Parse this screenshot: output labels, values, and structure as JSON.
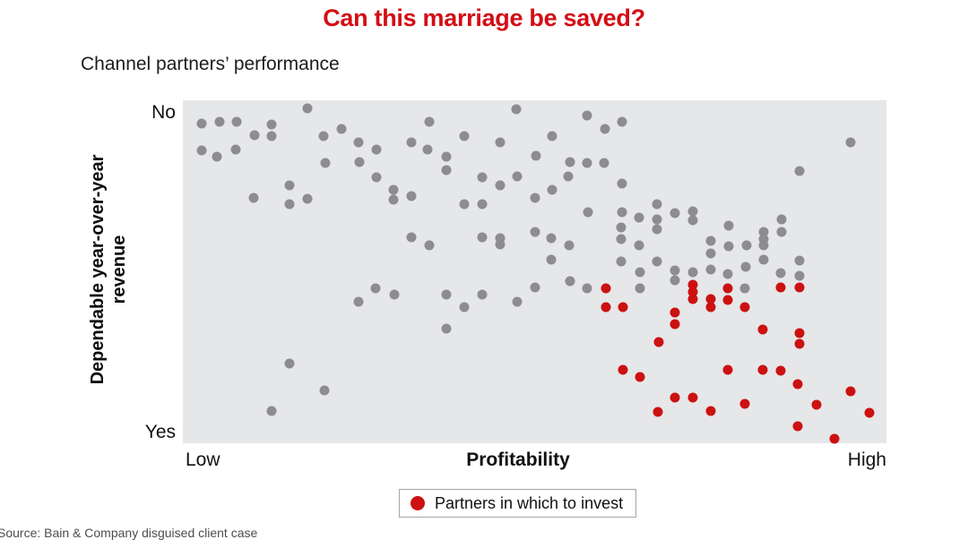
{
  "title": "Can this marriage be saved?",
  "subtitle": "Channel partners’ performance",
  "source": "Source: Bain & Company disguised client case",
  "colors": {
    "title_red": "#d40d14",
    "invest_red": "#cc1111",
    "partner_gray": "#8d8d8f",
    "plot_background": "#e6e7e9",
    "legend_border": "#a6a6a6"
  },
  "chart_data": {
    "type": "scatter",
    "title": "Can this marriage be saved?",
    "subtitle": "Channel partners’ performance",
    "xlabel": "Profitability",
    "ylabel": "Dependable year-over-year revenue",
    "x_axis": {
      "label": "Profitability",
      "min_label": "Low",
      "max_label": "High",
      "scale": "qualitative 0=Low to 100=High",
      "ticks": false
    },
    "y_axis": {
      "label_line1": "Dependable year-over-year",
      "label_line2": "revenue",
      "top_label": "No",
      "bottom_label": "Yes",
      "scale": "qualitative 0=No (top) to 100=Yes (bottom)",
      "ticks": false
    },
    "grid": false,
    "legend_position": "below-chart-center",
    "legend": [
      {
        "label": "Partners in which to invest",
        "color": "#cc1111"
      }
    ],
    "series": [
      {
        "name": "partners_other",
        "color": "#8d8d8f",
        "dot_name": "gray-partner-point",
        "points": [
          [
            2.7,
            6.8
          ],
          [
            5.2,
            6.3
          ],
          [
            7.6,
            6.3
          ],
          [
            12.6,
            7.0
          ],
          [
            10.2,
            10.2
          ],
          [
            12.6,
            10.4
          ],
          [
            17.7,
            2.3
          ],
          [
            20.0,
            10.4
          ],
          [
            22.5,
            8.4
          ],
          [
            2.7,
            14.6
          ],
          [
            4.8,
            16.4
          ],
          [
            7.5,
            14.4
          ],
          [
            25.0,
            12.3
          ],
          [
            27.5,
            14.4
          ],
          [
            32.5,
            12.3
          ],
          [
            20.3,
            18.3
          ],
          [
            25.1,
            18.0
          ],
          [
            27.5,
            22.5
          ],
          [
            15.2,
            24.8
          ],
          [
            10.1,
            28.5
          ],
          [
            15.2,
            30.3
          ],
          [
            17.7,
            28.7
          ],
          [
            29.9,
            26.1
          ],
          [
            29.9,
            29.0
          ],
          [
            32.5,
            27.9
          ],
          [
            32.5,
            39.9
          ],
          [
            47.4,
            2.6
          ],
          [
            57.5,
            4.4
          ],
          [
            62.4,
            6.3
          ],
          [
            60.0,
            8.4
          ],
          [
            35.0,
            6.3
          ],
          [
            40.0,
            10.4
          ],
          [
            45.1,
            12.3
          ],
          [
            52.5,
            10.4
          ],
          [
            34.8,
            14.4
          ],
          [
            37.5,
            16.4
          ],
          [
            37.5,
            20.4
          ],
          [
            50.2,
            16.2
          ],
          [
            55.0,
            18.0
          ],
          [
            57.5,
            18.3
          ],
          [
            59.9,
            18.3
          ],
          [
            42.5,
            22.5
          ],
          [
            45.1,
            24.8
          ],
          [
            47.5,
            22.2
          ],
          [
            54.8,
            22.2
          ],
          [
            62.4,
            24.3
          ],
          [
            52.5,
            26.1
          ],
          [
            50.1,
            28.5
          ],
          [
            40.0,
            30.3
          ],
          [
            42.5,
            30.3
          ],
          [
            57.6,
            32.6
          ],
          [
            62.4,
            32.6
          ],
          [
            64.8,
            34.2
          ],
          [
            67.4,
            30.3
          ],
          [
            67.4,
            34.7
          ],
          [
            62.3,
            37.1
          ],
          [
            67.4,
            37.6
          ],
          [
            50.1,
            38.4
          ],
          [
            52.4,
            40.2
          ],
          [
            42.5,
            39.9
          ],
          [
            45.1,
            40.2
          ],
          [
            45.1,
            42.0
          ],
          [
            35.0,
            42.3
          ],
          [
            54.9,
            42.3
          ],
          [
            62.3,
            40.5
          ],
          [
            64.8,
            42.3
          ],
          [
            52.4,
            46.5
          ],
          [
            62.3,
            47.0
          ],
          [
            67.4,
            47.0
          ],
          [
            94.9,
            12.3
          ],
          [
            87.6,
            20.6
          ],
          [
            69.9,
            32.9
          ],
          [
            72.5,
            32.4
          ],
          [
            72.5,
            35.0
          ],
          [
            77.6,
            36.6
          ],
          [
            75.0,
            41.0
          ],
          [
            77.6,
            42.6
          ],
          [
            80.1,
            42.3
          ],
          [
            75.0,
            44.6
          ],
          [
            82.5,
            38.4
          ],
          [
            82.5,
            40.5
          ],
          [
            82.5,
            42.3
          ],
          [
            85.1,
            34.7
          ],
          [
            85.1,
            38.4
          ],
          [
            82.5,
            46.5
          ],
          [
            87.6,
            46.7
          ],
          [
            80.0,
            48.6
          ],
          [
            75.0,
            49.3
          ],
          [
            69.9,
            49.6
          ],
          [
            69.9,
            52.5
          ],
          [
            72.5,
            50.1
          ],
          [
            77.5,
            50.7
          ],
          [
            85.0,
            50.4
          ],
          [
            87.6,
            51.2
          ],
          [
            37.5,
            56.7
          ],
          [
            40.0,
            60.3
          ],
          [
            42.5,
            56.7
          ],
          [
            47.5,
            58.7
          ],
          [
            50.1,
            54.6
          ],
          [
            55.0,
            52.7
          ],
          [
            57.5,
            54.8
          ],
          [
            65.0,
            50.1
          ],
          [
            65.0,
            54.8
          ],
          [
            37.5,
            66.6
          ],
          [
            25.0,
            58.7
          ],
          [
            27.4,
            54.8
          ],
          [
            30.1,
            56.7
          ],
          [
            15.2,
            76.8
          ],
          [
            20.1,
            84.6
          ],
          [
            12.6,
            90.6
          ],
          [
            79.9,
            54.8
          ]
        ]
      },
      {
        "name": "partners_to_invest",
        "color": "#cc1111",
        "dot_name": "red-invest-point",
        "points": [
          [
            60.1,
            54.8
          ],
          [
            60.1,
            60.3
          ],
          [
            62.5,
            60.3
          ],
          [
            67.6,
            70.5
          ],
          [
            62.5,
            78.6
          ],
          [
            65.0,
            80.7
          ],
          [
            67.5,
            90.9
          ],
          [
            72.5,
            53.8
          ],
          [
            72.5,
            55.9
          ],
          [
            72.5,
            58.0
          ],
          [
            75.0,
            58.0
          ],
          [
            75.0,
            60.3
          ],
          [
            77.5,
            54.8
          ],
          [
            77.5,
            58.2
          ],
          [
            79.9,
            60.3
          ],
          [
            69.9,
            61.9
          ],
          [
            69.9,
            65.3
          ],
          [
            82.4,
            66.8
          ],
          [
            85.0,
            54.6
          ],
          [
            87.6,
            54.6
          ],
          [
            87.6,
            67.9
          ],
          [
            87.6,
            71.0
          ],
          [
            77.5,
            78.6
          ],
          [
            82.4,
            78.6
          ],
          [
            85.0,
            78.9
          ],
          [
            87.4,
            82.8
          ],
          [
            69.9,
            86.7
          ],
          [
            72.5,
            86.7
          ],
          [
            75.0,
            90.6
          ],
          [
            79.9,
            88.5
          ],
          [
            90.1,
            88.8
          ],
          [
            94.9,
            84.9
          ],
          [
            97.6,
            91.1
          ],
          [
            87.4,
            95.0
          ],
          [
            92.6,
            98.7
          ]
        ]
      }
    ]
  }
}
